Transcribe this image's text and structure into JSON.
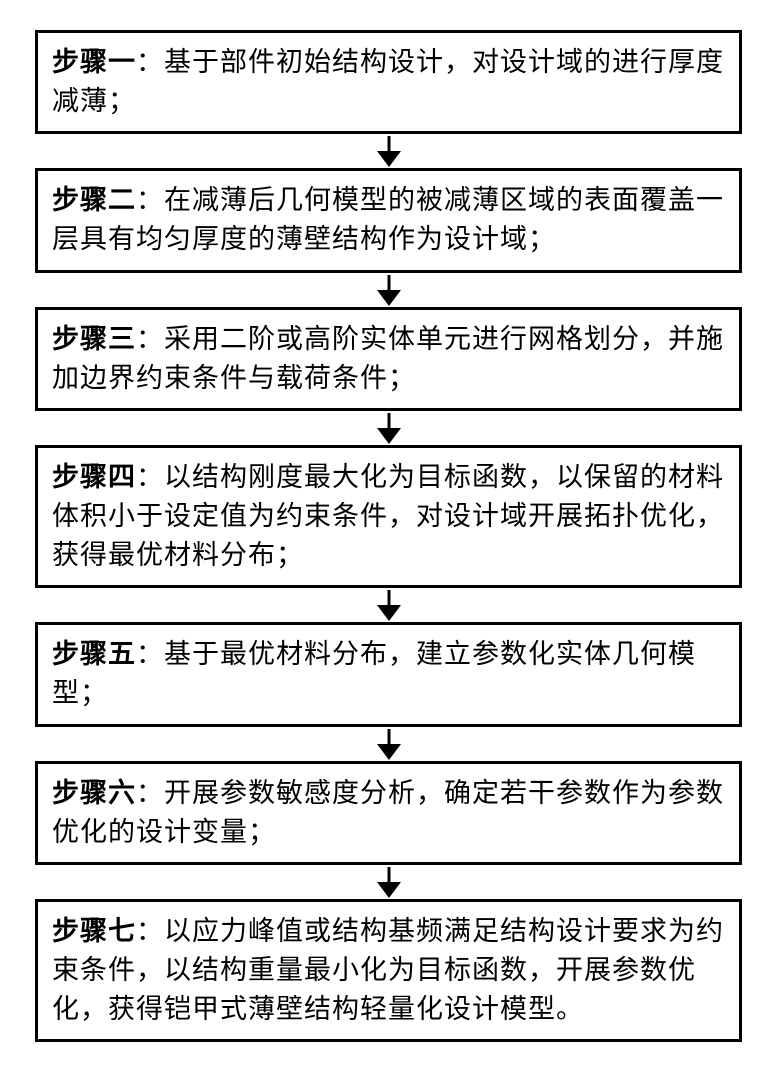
{
  "flowchart": {
    "type": "flowchart",
    "layout": "vertical",
    "box_border_color": "#000000",
    "box_border_width": 3,
    "box_background": "#ffffff",
    "text_color": "#000000",
    "font_family": "SimSun",
    "font_size": 27,
    "arrow_color": "#000000",
    "steps": [
      {
        "label": "步骤一",
        "separator": "：",
        "text": "基于部件初始结构设计，对设计域的进行厚度减薄；"
      },
      {
        "label": "步骤二",
        "separator": "：",
        "text": "在减薄后几何模型的被减薄区域的表面覆盖一层具有均匀厚度的薄壁结构作为设计域；"
      },
      {
        "label": "步骤三",
        "separator": "：",
        "text": "采用二阶或高阶实体单元进行网格划分，并施加边界约束条件与载荷条件；"
      },
      {
        "label": "步骤四",
        "separator": "：",
        "text": "以结构刚度最大化为目标函数，以保留的材料体积小于设定值为约束条件，对设计域开展拓扑优化，获得最优材料分布；"
      },
      {
        "label": "步骤五",
        "separator": "：",
        "text": "基于最优材料分布，建立参数化实体几何模型；"
      },
      {
        "label": "步骤六",
        "separator": "：",
        "text": "开展参数敏感度分析，确定若干参数作为参数优化的设计变量；"
      },
      {
        "label": "步骤七",
        "separator": "：",
        "text": "以应力峰值或结构基频满足结构设计要求为约束条件，以结构重量最小化为目标函数，开展参数优化，获得铠甲式薄壁结构轻量化设计模型。"
      }
    ]
  }
}
